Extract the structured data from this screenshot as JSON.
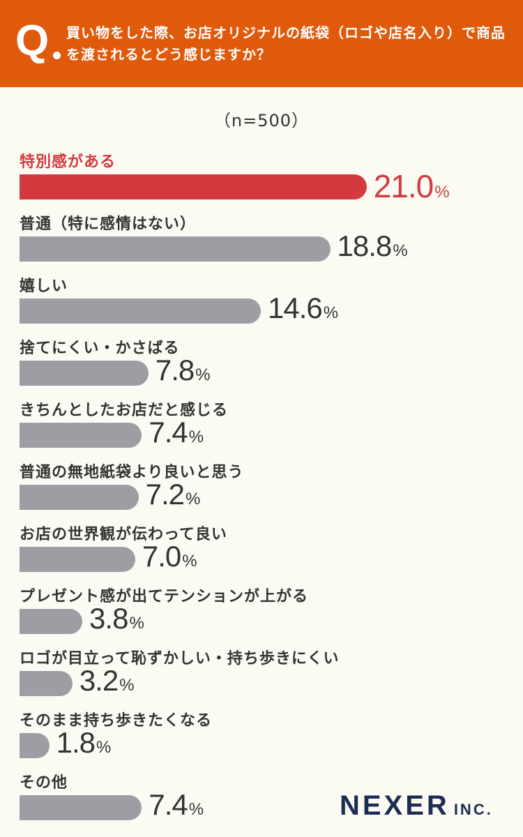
{
  "header": {
    "q_mark": "Q",
    "question": "買い物をした際、お店オリジナルの紙袋（ロゴや店名入り）で商品を渡されるとどう感じますか？"
  },
  "sample_size": "（n=500）",
  "logo": {
    "main": "NEXER",
    "sub": "INC."
  },
  "colors": {
    "highlight": "#d33a3f",
    "bar": "#9c9ea4",
    "header": "#e05a0c",
    "text": "#333333",
    "logo": "#1e2d55"
  },
  "chart_data": {
    "type": "bar",
    "orientation": "horizontal",
    "unit": "%",
    "categories": [
      "特別感がある",
      "普通（特に感情はない）",
      "嬉しい",
      "捨てにくい・かさばる",
      "きちんとしたお店だと感じる",
      "普通の無地紙袋より良いと思う",
      "お店の世界観が伝わって良い",
      "プレゼント感が出てテンションが上がる",
      "ロゴが目立って恥ずかしい・持ち歩きにくい",
      "そのまま持ち歩きたくなる",
      "その他"
    ],
    "values": [
      21.0,
      18.8,
      14.6,
      7.8,
      7.4,
      7.2,
      7.0,
      3.8,
      3.2,
      1.8,
      7.4
    ],
    "highlight_index": 0
  }
}
